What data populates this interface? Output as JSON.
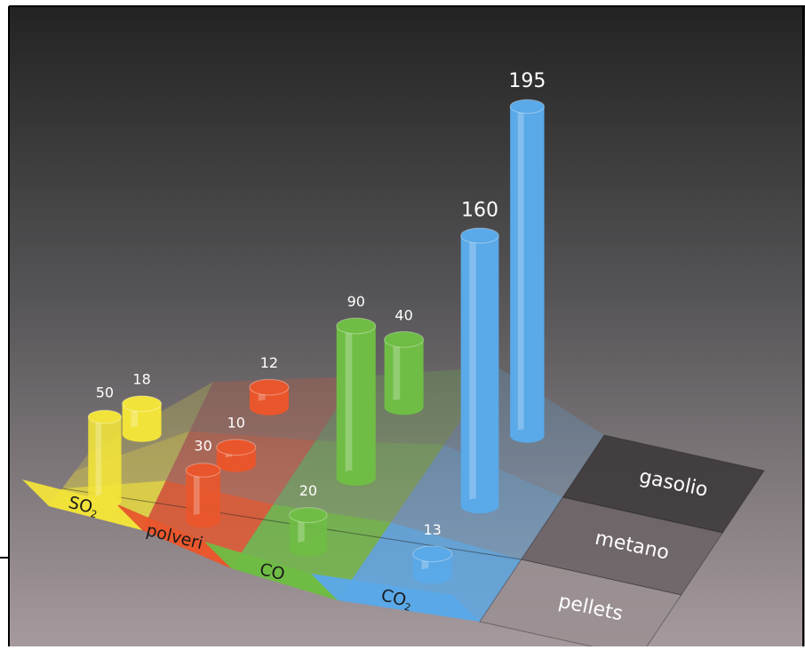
{
  "chart_data": {
    "type": "bar",
    "categories": [
      "SO2",
      "polveri",
      "CO",
      "CO2"
    ],
    "category_labels": [
      {
        "text": "SO",
        "sub": "2"
      },
      {
        "text": "polveri",
        "sub": ""
      },
      {
        "text": "CO",
        "sub": ""
      },
      {
        "text": "CO",
        "sub": "2"
      }
    ],
    "series": [
      {
        "name": "gasolio",
        "values": [
          18,
          12,
          40,
          195
        ]
      },
      {
        "name": "metano",
        "values": [
          null,
          10,
          90,
          160
        ]
      },
      {
        "name": "pellets",
        "values": [
          50,
          30,
          20,
          13
        ]
      }
    ],
    "data_labels": {
      "gasolio": [
        "18",
        "12",
        "40",
        "195"
      ],
      "metano": [
        "",
        "10",
        "90",
        "160"
      ],
      "pellets": [
        "50",
        "30",
        "20",
        "13"
      ]
    },
    "colors": {
      "SO2": "#f2e33a",
      "polveri": "#e9562c",
      "CO": "#6fbd44",
      "CO2": "#5aa9e8"
    },
    "grid": false,
    "legend": "right-side row labels"
  }
}
